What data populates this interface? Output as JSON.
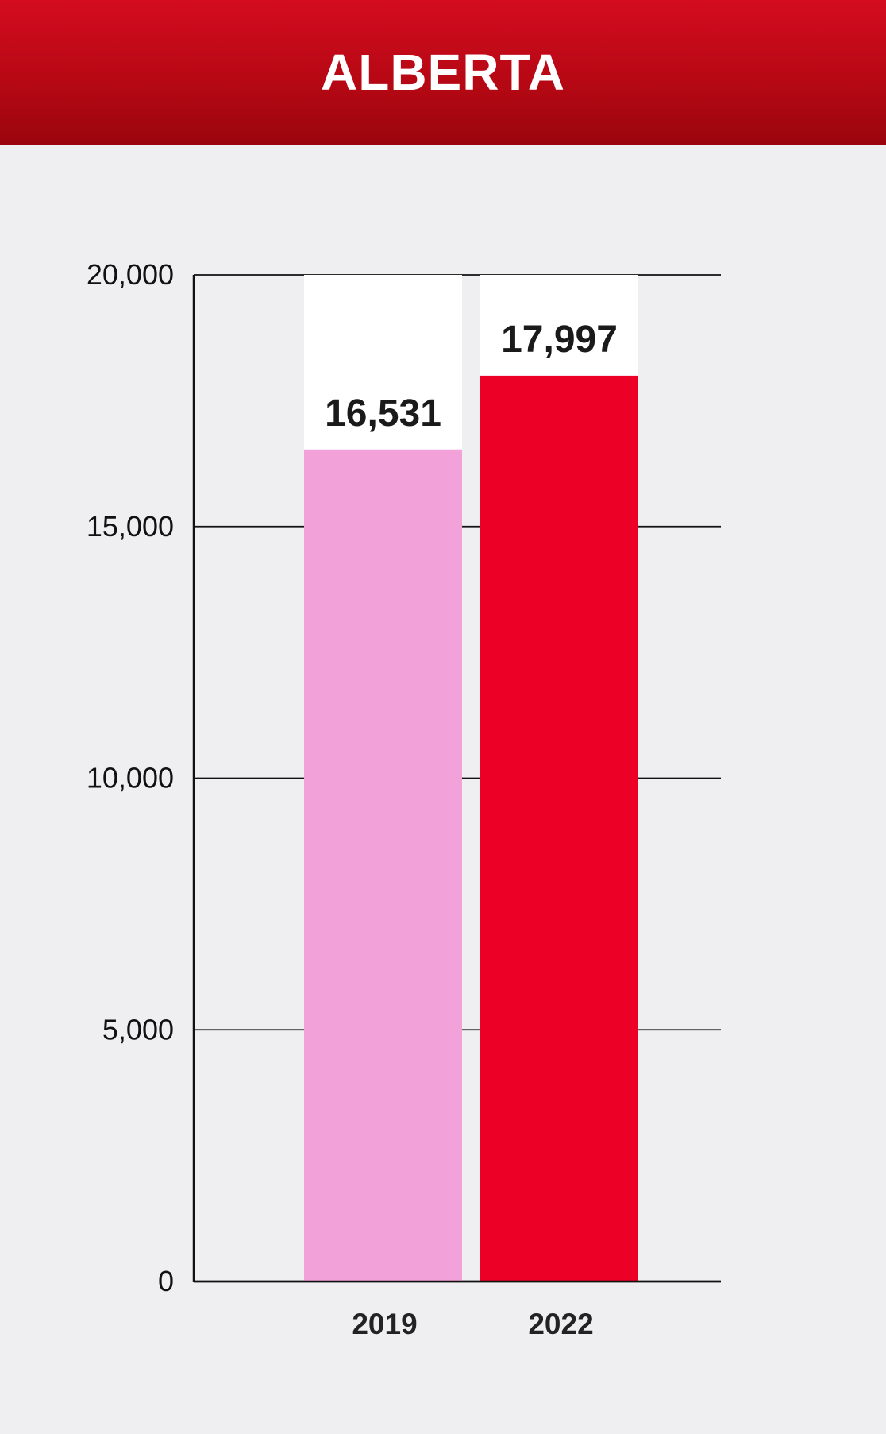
{
  "header": {
    "title": "ALBERTA"
  },
  "colors": {
    "header_red": "#c00a18",
    "background": "#efeff1",
    "bar_2019": "#f2a2d9",
    "bar_2022": "#ec0026",
    "bar_track": "#ffffff",
    "gridline": "#111111"
  },
  "chart_data": {
    "type": "bar",
    "title": "ALBERTA",
    "categories": [
      "2019",
      "2022"
    ],
    "values": [
      16531,
      17997
    ],
    "value_labels": [
      "16,531",
      "17,997"
    ],
    "ylim": [
      0,
      20000
    ],
    "yticks": [
      0,
      5000,
      10000,
      15000,
      20000
    ],
    "ytick_labels": [
      "0",
      "5,000",
      "10,000",
      "15,000",
      "20,000"
    ],
    "grid": true,
    "legend": "none",
    "xlabel": "",
    "ylabel": ""
  }
}
